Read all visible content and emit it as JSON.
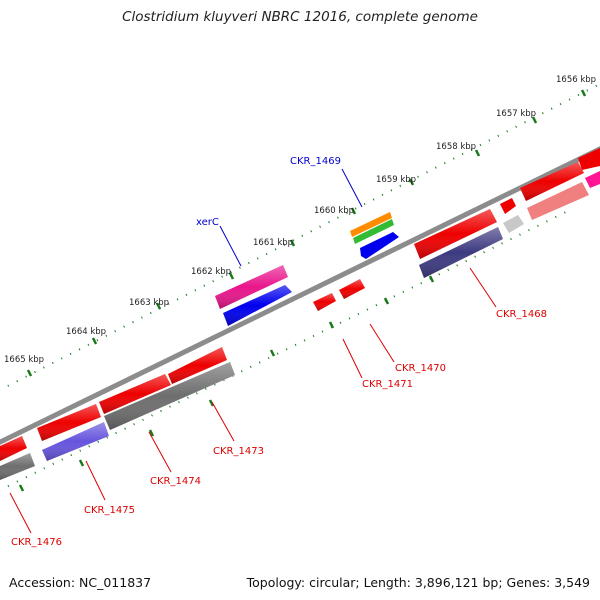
{
  "title": "Clostridium kluyveri NBRC 12016, complete genome",
  "footer": {
    "accession": "Accession: NC_011837",
    "topology": "Topology: circular; Length: 3,896,121 bp; Genes: 3,549"
  },
  "colors": {
    "backbone": "#8c8c8c",
    "tick": "#1a7a1a",
    "forward_label": "#0000cc",
    "reverse_label": "#dd0000",
    "red": "#ee0000",
    "blue": "#0000ee",
    "magenta": "#e8168c",
    "navy": "#3d3a80",
    "gray": "#6e6e6e",
    "light_gray": "#c8c8c8",
    "pink": "#f08080",
    "hot_pink": "#ff1493",
    "violet": "#6655dd",
    "orange": "#ff8c00",
    "green": "#33bb33"
  },
  "ticks": [
    {
      "label": "1656 kbp"
    },
    {
      "label": "1657 kbp"
    },
    {
      "label": "1658 kbp"
    },
    {
      "label": "1659 kbp"
    },
    {
      "label": "1660 kbp"
    },
    {
      "label": "1661 kbp"
    },
    {
      "label": "1662 kbp"
    },
    {
      "label": "1663 kbp"
    },
    {
      "label": "1664 kbp"
    },
    {
      "label": "1665 kbp"
    }
  ],
  "gene_labels": [
    {
      "text": "CKR_1469",
      "strand": "forward"
    },
    {
      "text": "xerC",
      "strand": "forward"
    },
    {
      "text": "CKR_1468",
      "strand": "reverse"
    },
    {
      "text": "CKR_1470",
      "strand": "reverse"
    },
    {
      "text": "CKR_1471",
      "strand": "reverse"
    },
    {
      "text": "CKR_1473",
      "strand": "reverse"
    },
    {
      "text": "CKR_1474",
      "strand": "reverse"
    },
    {
      "text": "CKR_1475",
      "strand": "reverse"
    },
    {
      "text": "CKR_1476",
      "strand": "reverse"
    }
  ]
}
